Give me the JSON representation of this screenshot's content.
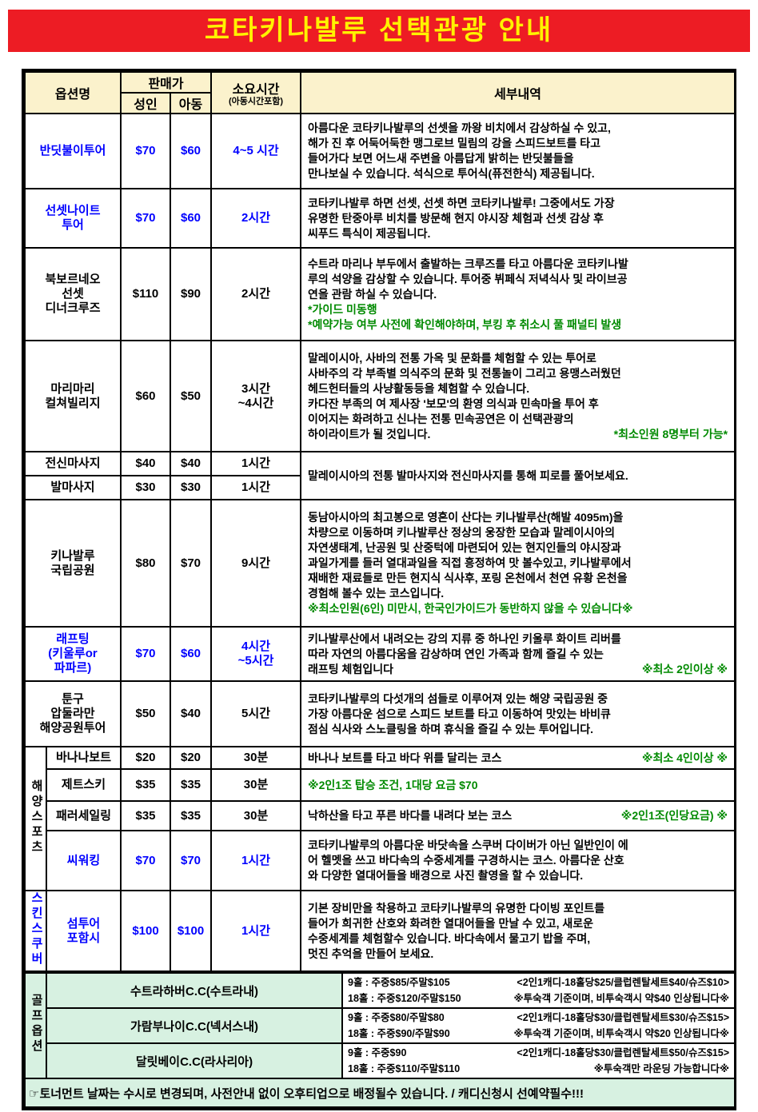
{
  "title": "코타키나발루 선택관광 안내",
  "colors": {
    "banner_bg": "#ED1C24",
    "banner_text": "#FFF200",
    "header_bg": "#FBF2CC",
    "mint_bg": "#D7F1E1",
    "blue_text": "#0000FF",
    "green_text": "#008A00",
    "border": "#000000"
  },
  "table_header": {
    "option_name": "옵션명",
    "sale_price": "판매가",
    "adult": "성인",
    "child": "아동",
    "duration": "소요시간",
    "duration_note": "(아동시간포함)",
    "details": "세부내역"
  },
  "groups": {
    "marine": "해양스포츠",
    "scuba": "스킨스쿠버",
    "golf": "골프옵션"
  },
  "tours": [
    {
      "name": "반딧불이투어",
      "color": "blue",
      "adult": "$70",
      "child": "$60",
      "duration": "4~5 시간",
      "detail_lines": [
        {
          "text": "아름다운 코타키나발루의 선셋을 까왕 비치에서 감상하실 수 있고,"
        },
        {
          "text": "해가 진 후 어둑어둑한 맹그로브 밀림의 강을 스피드보트를 타고"
        },
        {
          "text": "들어가다 보면 어느새 주변을 아름답게 밝히는 반딧불들을"
        },
        {
          "text": "만나보실 수 있습니다. 석식으로 투어식(퓨전한식) 제공됩니다."
        }
      ]
    },
    {
      "name": "선셋나이트\n투어",
      "color": "blue",
      "adult": "$70",
      "child": "$60",
      "duration": "2시간",
      "detail_lines": [
        {
          "text": "코타키나발루 하면 선셋, 선셋 하면 코타키나발루! 그중에서도 가장"
        },
        {
          "text": "유명한 탄중아루 비치를 방문해 현지 야시장 체험과 선셋 감상 후"
        },
        {
          "text": "씨푸드 특식이 제공됩니다."
        }
      ]
    },
    {
      "name": "북보르네오\n선셋\n디너크루즈",
      "color": "black",
      "adult": "$110",
      "child": "$90",
      "duration": "2시간",
      "detail_lines": [
        {
          "text": " 수트라 마리나 부두에서 출발하는 크루즈를 타고 아름다운 코타키나발"
        },
        {
          "text": "루의 석양을 감상할 수 있습니다. 투어중 뷔페식 저녁식사 및 라이브공"
        },
        {
          "text": "연을 관람 하실 수 있습니다."
        },
        {
          "text": "*가이드 미동행",
          "color": "green"
        },
        {
          "text": "*예약가능 여부 사전에 확인해야하며, 부킹 후 취소시 풀 패널티 발생",
          "color": "green"
        }
      ]
    },
    {
      "name": "마리마리\n컬쳐빌리지",
      "color": "black",
      "adult": "$60",
      "child": "$50",
      "duration": "3시간\n~4시간",
      "detail_lines": [
        {
          "text": "말레이시아, 사바의 전통 가옥 및 문화를 체험할 수 있는 투어로"
        },
        {
          "text": "사바주의 각 부족별 의식주의 문화 및 전통놀이 그리고 용맹스러웠던"
        },
        {
          "text": "헤드헌터들의 사냥활동등을 체험할 수 있습니다."
        },
        {
          "text": "카다잔 부족의 여 제사장 '보모'의 환영 의식과 민속마을 투어 후"
        },
        {
          "text": "이어지는 화려하고 신나는 전통 민속공연은 이 선택관광의"
        },
        {
          "split": true,
          "left": "하이라이트가 될 것입니다.",
          "right": "*최소인원 8명부터 가능*",
          "right_color": "green"
        }
      ]
    },
    {
      "name": "전신마사지",
      "color": "black",
      "adult": "$40",
      "child": "$40",
      "duration": "1시간",
      "detail_lines": [
        {
          "text": "말레이시아의 전통 발마사지와 전신마사지를 통해 피로를 풀어보세요."
        }
      ]
    },
    {
      "name": "발마사지",
      "color": "black",
      "adult": "$30",
      "child": "$30",
      "duration": "1시간",
      "detail_lines": []
    },
    {
      "name": "키나발루\n국립공원",
      "color": "black",
      "adult": "$80",
      "child": "$70",
      "duration": "9시간",
      "detail_lines": [
        {
          "text": "동남아시아의 최고봉으로 영혼이 산다는 키나발루산(해발 4095m)을"
        },
        {
          "text": "차량으로 이동하며 키나발루산 정상의 웅장한 모습과 말레이시아의"
        },
        {
          "text": "자연생태계, 난공원 및 산중턱에 마련되어 있는 현지인들의 야시장과"
        },
        {
          "text": "과일가게를 들러 열대과일을 직접 흥정하여 맛 볼수있고, 키나발루에서"
        },
        {
          "text": "재배한 재료들로 만든 현지식 식사후, 포링 온천에서 천연 유황 온천을"
        },
        {
          "text": "경험해 볼수 있는 코스입니다."
        },
        {
          "text": "※최소인원(6인) 미만시, 한국인가이드가 동반하지 않을 수 있습니다※",
          "color": "green"
        }
      ]
    },
    {
      "name": "래프팅\n(키울루or\n파파르)",
      "color": "blue",
      "adult": "$70",
      "child": "$60",
      "duration": "4시간\n~5시간",
      "detail_lines": [
        {
          "text": "키나발루산에서 내려오는 강의 지류 중 하나인 키울루 화이트 리버를"
        },
        {
          "text": "따라 자연의 아름다움을 감상하며 연인 가족과 함께 즐길 수 있는"
        },
        {
          "split": true,
          "left": "래프팅 체험입니다",
          "right": "※최소 2인이상 ※",
          "right_color": "green"
        }
      ]
    },
    {
      "name": "툰구\n압둘라만\n해양공원투어",
      "color": "black",
      "adult": "$50",
      "child": "$40",
      "duration": "5시간",
      "detail_lines": [
        {
          "text": "코타키나발루의 다섯개의 섬들로 이루어져 있는 해양 국립공원 중"
        },
        {
          "text": "가장 아름다운 섬으로 스피드 보트를 타고 이동하여 맛있는 바비큐"
        },
        {
          "text": "점심 식사와 스노클링을 하며 휴식을 즐길 수 있는 투어입니다."
        }
      ]
    },
    {
      "name": "바나나보트",
      "color": "black",
      "adult": "$20",
      "child": "$20",
      "duration": "30분",
      "detail_lines": [
        {
          "split": true,
          "left": "바나나 보트를 타고 바다 위를 달리는 코스",
          "right": "※최소 4인이상 ※",
          "right_color": "green"
        }
      ]
    },
    {
      "name": "제트스키",
      "color": "black",
      "adult": "$35",
      "child": "$35",
      "duration": "30분",
      "detail_lines": [
        {
          "text": "※2인1조 탑승 조건, 1대당 요금 $70",
          "color": "green"
        }
      ]
    },
    {
      "name": "패러세일링",
      "color": "black",
      "adult": "$35",
      "child": "$35",
      "duration": "30분",
      "detail_lines": [
        {
          "split": true,
          "left": "낙하산을 타고 푸른 바다를 내려다 보는 코스",
          "right": "※2인1조(인당요금) ※",
          "right_color": "green"
        }
      ]
    },
    {
      "name": "씨워킹",
      "color": "blue",
      "adult": "$70",
      "child": "$70",
      "duration": "1시간",
      "detail_lines": [
        {
          "text": " 코타키나발루의 아름다운 바닷속을 스쿠버 다이버가 아닌 일반인이 에"
        },
        {
          "text": "어 헬멧을 쓰고 바다속의 수중세계를 구경하시는 코스. 아름다운 산호"
        },
        {
          "text": "와 다양한 열대어들을 배경으로 사진 촬영을 할 수 있습니다."
        }
      ]
    },
    {
      "name": "섬투어\n포함시",
      "color": "blue",
      "adult": "$100",
      "child": "$100",
      "duration": "1시간",
      "detail_lines": [
        {
          "text": "기본 장비만을 착용하고 코타키나발루의 유명한 다이빙 포인트를"
        },
        {
          "text": "들어가 희귀한 산호와 화려한 열대어들을 만날 수 있고, 새로운"
        },
        {
          "text": "수중세계를 체험할수 있습니다. 바다속에서 물고기 밥을 주며,"
        },
        {
          "text": "멋진 추억을 만들어 보세요."
        }
      ]
    }
  ],
  "golf": [
    {
      "name": "수트라하버C.C(수트라내)",
      "lines": [
        {
          "split": true,
          "left": "9홀 : 주중$85/주말$105",
          "right": "<2인1캐디-18홀당$25/클럽렌탈세트$40/슈즈$10>",
          "right_color": "black"
        },
        {
          "split": true,
          "left": "18홀 : 주중$120/주말$150",
          "right": "※투숙객 기준이며, 비투숙객시 약$40 인상됩니다※",
          "right_color": "black"
        }
      ]
    },
    {
      "name": "가람부나이C.C(넥서스내)",
      "lines": [
        {
          "split": true,
          "left": "9홀 : 주중$80/주말$80",
          "right": "<2인1캐디-18홀당$30/클럽렌탈세트$30/슈즈$15>",
          "right_color": "black"
        },
        {
          "split": true,
          "left": "18홀 : 주중$90/주말$90",
          "right": "※투숙객 기준이며, 비투숙객시 약$20 인상됩니다※",
          "right_color": "black"
        }
      ]
    },
    {
      "name": "달릿베이C.C(라사리아)",
      "lines": [
        {
          "split": true,
          "left": "9홀 : 주중$90",
          "right": "<2인1캐디-18홀당$30/클럽렌탈세트$50/슈즈$15>",
          "right_color": "black"
        },
        {
          "split": true,
          "left": "18홀 : 주중$110/주말$110",
          "right": "※투숙객만 라운딩 가능합니다※",
          "right_color": "black"
        }
      ]
    }
  ],
  "footer_note": "☞토너먼트 날짜는 수시로 변경되며, 사전안내 없이 오후티업으로 배정될수 있습니다. / 캐디신청시 선예약필수!!!"
}
